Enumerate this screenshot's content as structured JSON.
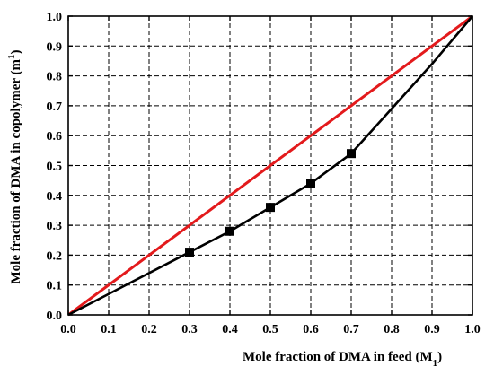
{
  "chart_data": {
    "type": "line",
    "xlabel": "Mole fraction of DMA in feed (M",
    "xlabel_sub": "1",
    "xlabel_end": ")",
    "ylabel": "Mole fraction of DMA in copolymer (m",
    "ylabel_sub": "1",
    "ylabel_end": ")",
    "xlim": [
      0.0,
      1.0
    ],
    "ylim": [
      0.0,
      1.0
    ],
    "xticks": [
      "0.0",
      "0.1",
      "0.2",
      "0.3",
      "0.4",
      "0.5",
      "0.6",
      "0.7",
      "0.8",
      "0.9",
      "1.0"
    ],
    "yticks": [
      "0.0",
      "0.1",
      "0.2",
      "0.3",
      "0.4",
      "0.5",
      "0.6",
      "0.7",
      "0.8",
      "0.9",
      "1.0"
    ],
    "grid": true,
    "series": [
      {
        "color": "#e31a1c",
        "marker": "none",
        "x": [
          0.0,
          1.0
        ],
        "y": [
          0.0,
          1.0
        ]
      },
      {
        "color": "#000000",
        "marker": "square",
        "marker_x": [
          0.3,
          0.4,
          0.5,
          0.6,
          0.7
        ],
        "x": [
          0.0,
          0.3,
          0.4,
          0.5,
          0.6,
          0.7,
          0.8,
          0.9,
          1.0
        ],
        "y": [
          0.0,
          0.21,
          0.28,
          0.36,
          0.44,
          0.54,
          0.69,
          0.84,
          1.0
        ]
      }
    ]
  }
}
